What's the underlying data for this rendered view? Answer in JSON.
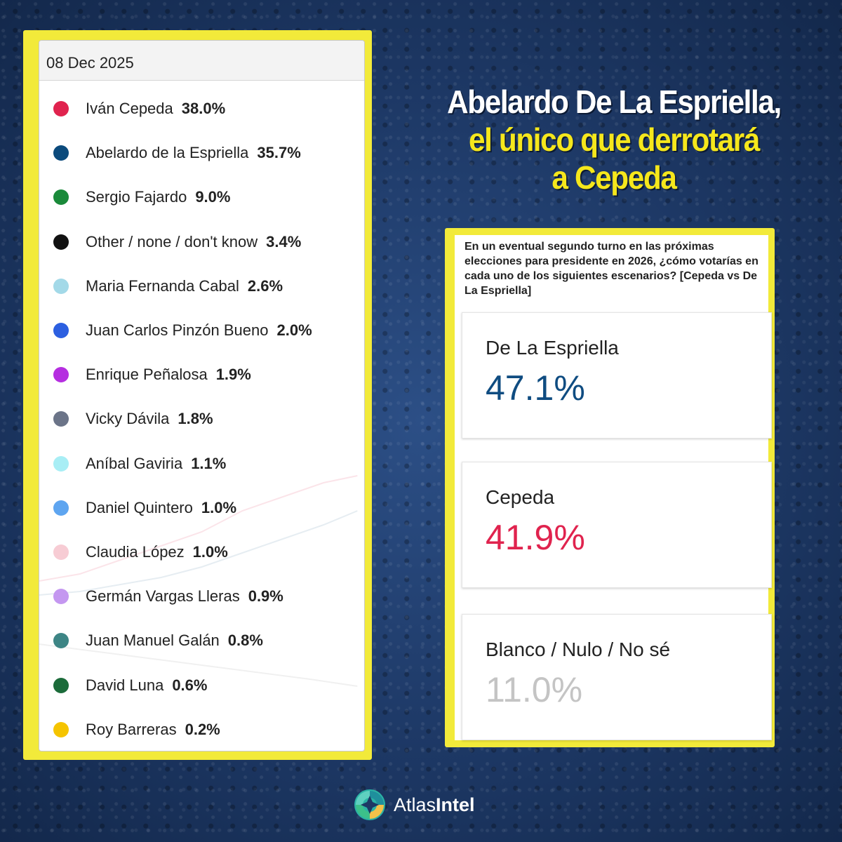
{
  "left_panel": {
    "date": "08 Dec 2025"
  },
  "headline": {
    "line1": "Abelardo De La Espriella,",
    "line2": "el único que derrotará",
    "line3": "a Cepeda"
  },
  "right_panel": {
    "question": "En un eventual segundo turno en las próximas elecciones para presidente en 2026, ¿cómo votarías en cada uno de los siguientes escenarios? [Cepeda vs De La Espriella]"
  },
  "brand": {
    "name_part1": "Atlas",
    "name_part2": "Intel",
    "icon": "atlasintel-logo-icon"
  },
  "colors": {
    "frame_yellow": "#f2ea3a",
    "headline_yellow": "#f5e71c",
    "espriella_blue": "#0f4c81",
    "cepeda_red": "#e0234e",
    "blank_gray": "#c4c4c4"
  },
  "chart_data": [
    {
      "type": "table",
      "title": "08 Dec 2025",
      "categories": [
        "Iván Cepeda",
        "Abelardo de la Espriella",
        "Sergio Fajardo",
        "Other / none / don't know",
        "Maria Fernanda Cabal",
        "Juan Carlos Pinzón Bueno",
        "Enrique Peñalosa",
        "Vicky Dávila",
        "Aníbal Gaviria",
        "Daniel Quintero",
        "Claudia López",
        "Germán Vargas Lleras",
        "Juan Manuel Galán",
        "David Luna",
        "Roy Barreras"
      ],
      "values": [
        38.0,
        35.7,
        9.0,
        3.4,
        2.6,
        2.0,
        1.9,
        1.8,
        1.1,
        1.0,
        1.0,
        0.9,
        0.8,
        0.6,
        0.2
      ],
      "labels": [
        "38.0%",
        "35.7%",
        "9.0%",
        "3.4%",
        "2.6%",
        "2.0%",
        "1.9%",
        "1.8%",
        "1.1%",
        "1.0%",
        "1.0%",
        "0.9%",
        "0.8%",
        "0.6%",
        "0.2%"
      ],
      "colors": [
        "#e0234e",
        "#0b4a7c",
        "#1a8a3a",
        "#111111",
        "#a3d9e8",
        "#2c5fe0",
        "#b52ee0",
        "#6b7488",
        "#a8eef5",
        "#5ea5f0",
        "#f7ccd4",
        "#c497f0",
        "#3d8585",
        "#1b6b3a",
        "#f5c400"
      ],
      "unit": "%"
    },
    {
      "type": "table",
      "title": "En un eventual segundo turno en las próximas elecciones para presidente en 2026, ¿cómo votarías en cada uno de los siguientes escenarios? [Cepeda vs De La Espriella]",
      "categories": [
        "De La Espriella",
        "Cepeda",
        "Blanco / Nulo / No sé"
      ],
      "values": [
        47.1,
        41.9,
        11.0
      ],
      "labels": [
        "47.1%",
        "41.9%",
        "11.0%"
      ],
      "colors": [
        "#0f4c81",
        "#e0234e",
        "#c4c4c4"
      ],
      "unit": "%"
    }
  ]
}
